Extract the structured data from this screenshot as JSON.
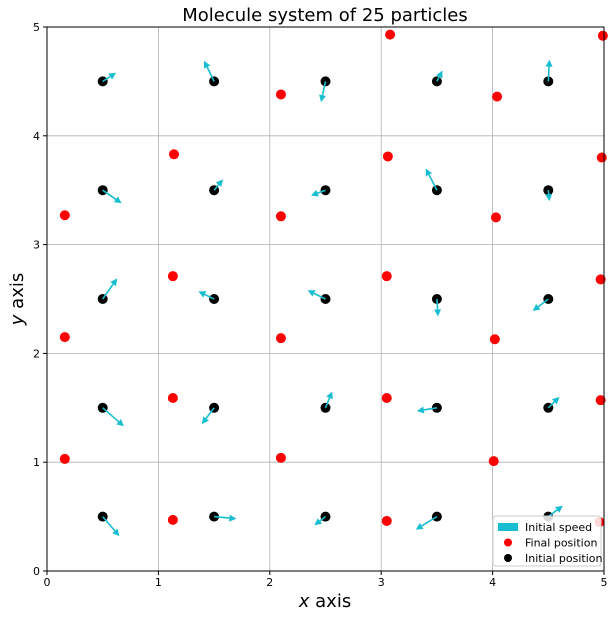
{
  "chart_data": {
    "type": "scatter",
    "title": "Molecule system of 25 particles",
    "xlabel_var": "x",
    "xlabel_rest": " axis",
    "ylabel_var": "y",
    "ylabel_rest": " axis",
    "xlim": [
      0,
      5
    ],
    "ylim": [
      0,
      5
    ],
    "xticks": [
      "0",
      "1",
      "2",
      "3",
      "4",
      "5"
    ],
    "yticks": [
      "0",
      "1",
      "2",
      "3",
      "4",
      "5"
    ],
    "grid": true,
    "legend_position": "bottom-right",
    "colors": {
      "initial": "#000000",
      "final": "#ff0000",
      "arrow": "#17becf"
    },
    "series": [
      {
        "name": "Initial position",
        "points": [
          [
            0.5,
            0.5
          ],
          [
            1.5,
            0.5
          ],
          [
            2.5,
            0.5
          ],
          [
            3.5,
            0.5
          ],
          [
            4.5,
            0.5
          ],
          [
            0.5,
            1.5
          ],
          [
            1.5,
            1.5
          ],
          [
            2.5,
            1.5
          ],
          [
            3.5,
            1.5
          ],
          [
            4.5,
            1.5
          ],
          [
            0.5,
            2.5
          ],
          [
            1.5,
            2.5
          ],
          [
            2.5,
            2.5
          ],
          [
            3.5,
            2.5
          ],
          [
            4.5,
            2.5
          ],
          [
            0.5,
            3.5
          ],
          [
            1.5,
            3.5
          ],
          [
            2.5,
            3.5
          ],
          [
            3.5,
            3.5
          ],
          [
            4.5,
            3.5
          ],
          [
            0.5,
            4.5
          ],
          [
            1.5,
            4.5
          ],
          [
            2.5,
            4.5
          ],
          [
            3.5,
            4.5
          ],
          [
            4.5,
            4.5
          ]
        ]
      },
      {
        "name": "Final position",
        "points": [
          [
            4.96,
            0.45
          ],
          [
            1.13,
            0.47
          ],
          [
            3.05,
            0.46
          ],
          [
            0.16,
            1.03
          ],
          [
            2.1,
            1.04
          ],
          [
            4.01,
            1.01
          ],
          [
            1.13,
            1.59
          ],
          [
            3.05,
            1.59
          ],
          [
            4.97,
            1.57
          ],
          [
            0.16,
            2.15
          ],
          [
            2.1,
            2.14
          ],
          [
            4.02,
            2.13
          ],
          [
            1.13,
            2.71
          ],
          [
            3.05,
            2.71
          ],
          [
            4.97,
            2.68
          ],
          [
            0.16,
            3.27
          ],
          [
            2.1,
            3.26
          ],
          [
            4.03,
            3.25
          ],
          [
            1.14,
            3.83
          ],
          [
            3.06,
            3.81
          ],
          [
            4.98,
            3.8
          ],
          [
            2.1,
            4.38
          ],
          [
            4.04,
            4.36
          ],
          [
            3.08,
            4.93
          ],
          [
            4.99,
            4.92
          ]
        ]
      },
      {
        "name": "Initial speed",
        "vectors": [
          [
            0.5,
            0.5,
            0.15,
            -0.18
          ],
          [
            1.5,
            0.5,
            0.2,
            -0.02
          ],
          [
            2.5,
            0.5,
            -0.1,
            -0.08
          ],
          [
            3.5,
            0.5,
            -0.19,
            -0.12
          ],
          [
            4.5,
            0.5,
            0.13,
            0.1
          ],
          [
            0.5,
            1.5,
            0.19,
            -0.17
          ],
          [
            1.5,
            1.5,
            -0.11,
            -0.15
          ],
          [
            2.5,
            1.5,
            0.06,
            0.15
          ],
          [
            3.5,
            1.5,
            -0.18,
            -0.03
          ],
          [
            4.5,
            1.5,
            0.1,
            0.1
          ],
          [
            0.5,
            2.5,
            0.13,
            0.19
          ],
          [
            1.5,
            2.5,
            -0.14,
            0.07
          ],
          [
            2.5,
            2.5,
            -0.16,
            0.08
          ],
          [
            3.5,
            2.5,
            0.01,
            -0.16
          ],
          [
            4.5,
            2.5,
            -0.14,
            -0.11
          ],
          [
            0.5,
            3.5,
            0.17,
            -0.12
          ],
          [
            1.5,
            3.5,
            0.08,
            0.1
          ],
          [
            2.5,
            3.5,
            -0.13,
            -0.05
          ],
          [
            3.5,
            3.5,
            -0.1,
            0.2
          ],
          [
            4.5,
            3.5,
            0.01,
            -0.1
          ],
          [
            0.5,
            4.5,
            0.12,
            0.08
          ],
          [
            1.5,
            4.5,
            -0.09,
            0.19
          ],
          [
            2.5,
            4.5,
            -0.04,
            -0.19
          ],
          [
            3.5,
            4.5,
            0.05,
            0.1
          ],
          [
            4.5,
            4.5,
            0.01,
            0.2
          ]
        ]
      }
    ],
    "legend": [
      {
        "label": "Initial speed",
        "kind": "arrow"
      },
      {
        "label": "Final position",
        "kind": "final"
      },
      {
        "label": "Initial position",
        "kind": "initial"
      }
    ]
  }
}
